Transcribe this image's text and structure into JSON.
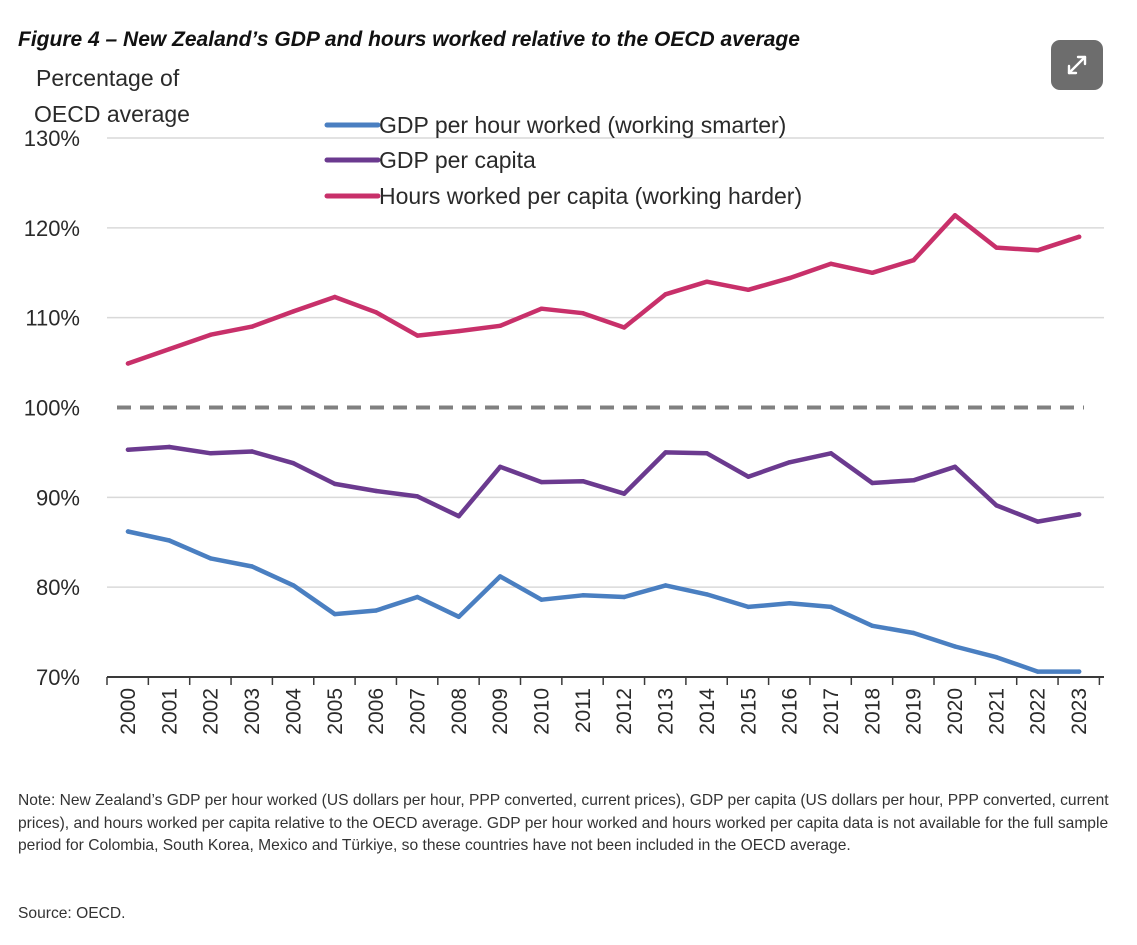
{
  "figure_title": "Figure 4 – New Zealand’s GDP and hours worked relative to the OECD average",
  "expand_icon": "expand-arrows-icon",
  "note": "Note: New Zealand’s GDP per hour worked (US dollars per hour, PPP converted, current prices), GDP per capita (US dollars per hour, PPP converted, current prices), and hours worked per capita relative to the OECD average. GDP per hour worked and hours worked per capita data is not available for the full sample period for Colombia, South Korea, Mexico and Türkiye, so these countries have not been included in the OECD average.",
  "source": "Source: OECD.",
  "chart_data": {
    "type": "line",
    "title": "",
    "ylabel_lines": [
      "Percentage of",
      "OECD average"
    ],
    "xlabel": "",
    "ylim": [
      70,
      130
    ],
    "yticks": [
      70,
      80,
      90,
      100,
      110,
      120,
      130
    ],
    "ytick_labels": [
      "70%",
      "80%",
      "90%",
      "100%",
      "110%",
      "120%",
      "130%"
    ],
    "grid": true,
    "legend_position": "top-center",
    "reference_line": {
      "value": 100,
      "style": "dashed",
      "color": "#808080"
    },
    "x": [
      "2000",
      "2001",
      "2002",
      "2003",
      "2004",
      "2005",
      "2006",
      "2007",
      "2008",
      "2009",
      "2010",
      "2011",
      "2012",
      "2013",
      "2014",
      "2015",
      "2016",
      "2017",
      "2018",
      "2019",
      "2020",
      "2021",
      "2022",
      "2023"
    ],
    "series": [
      {
        "name": "GDP per hour worked (working smarter)",
        "color": "#4a7fc1",
        "values": [
          86.2,
          85.2,
          83.2,
          82.3,
          80.2,
          77.0,
          77.4,
          78.9,
          76.7,
          81.2,
          78.6,
          79.1,
          78.9,
          80.2,
          79.2,
          77.8,
          78.2,
          77.8,
          75.7,
          74.9,
          73.4,
          72.2,
          70.6,
          70.6
        ]
      },
      {
        "name": "GDP per capita",
        "color": "#6b3a8f",
        "values": [
          95.3,
          95.6,
          94.9,
          95.1,
          93.8,
          91.5,
          90.7,
          90.1,
          87.9,
          93.4,
          91.7,
          91.8,
          90.4,
          95.0,
          94.9,
          92.3,
          93.9,
          94.9,
          91.6,
          91.9,
          93.4,
          89.1,
          87.3,
          88.1
        ]
      },
      {
        "name": "Hours worked per capita (working harder)",
        "color": "#c8306a",
        "values": [
          104.9,
          106.5,
          108.1,
          109.0,
          110.7,
          112.3,
          110.6,
          108.0,
          108.5,
          109.1,
          111.0,
          110.5,
          108.9,
          112.6,
          114.0,
          113.1,
          114.4,
          116.0,
          115.0,
          116.4,
          121.4,
          117.8,
          117.5,
          119.0
        ]
      }
    ]
  }
}
